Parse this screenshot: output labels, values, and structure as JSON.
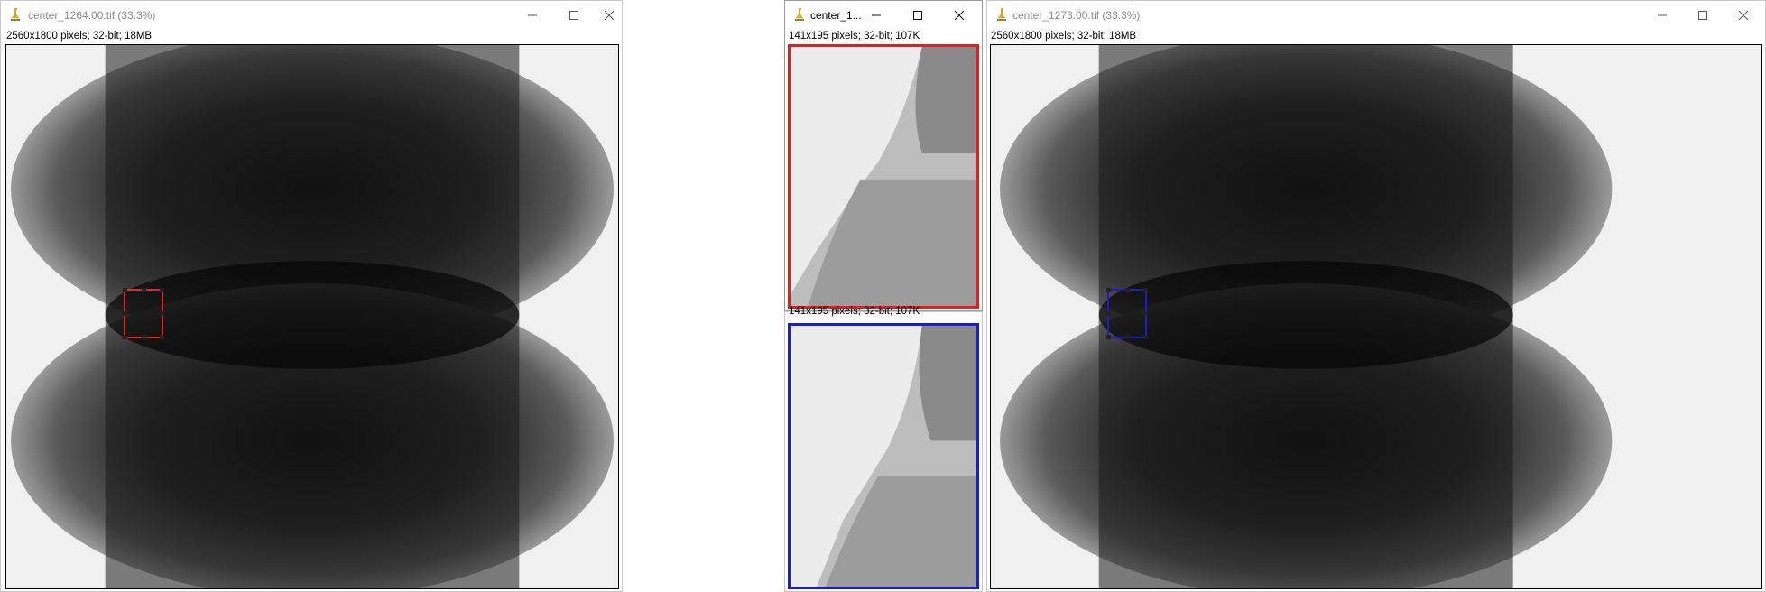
{
  "windows": [
    {
      "id": "left",
      "title": "center_1264.00.tif (33.3%)",
      "info": "2560x1800 pixels; 32-bit; 18MB",
      "roi_color": "#d82b2b"
    },
    {
      "id": "middle",
      "title": "center_1...",
      "info_top": "141x195 pixels; 32-bit; 107K",
      "info_bottom": "141x195 pixels; 32-bit; 107K",
      "top_border_color": "#e02020",
      "bottom_border_color": "#1e1ec8"
    },
    {
      "id": "right",
      "title": "center_1273.00.tif (33.3%)",
      "info": "2560x1800 pixels; 32-bit; 18MB",
      "roi_color": "#1e1ec8"
    }
  ],
  "icons": {
    "app": "imagej-microscope-icon",
    "minimize": "minimize-icon",
    "maximize": "maximize-icon",
    "close": "close-icon"
  }
}
